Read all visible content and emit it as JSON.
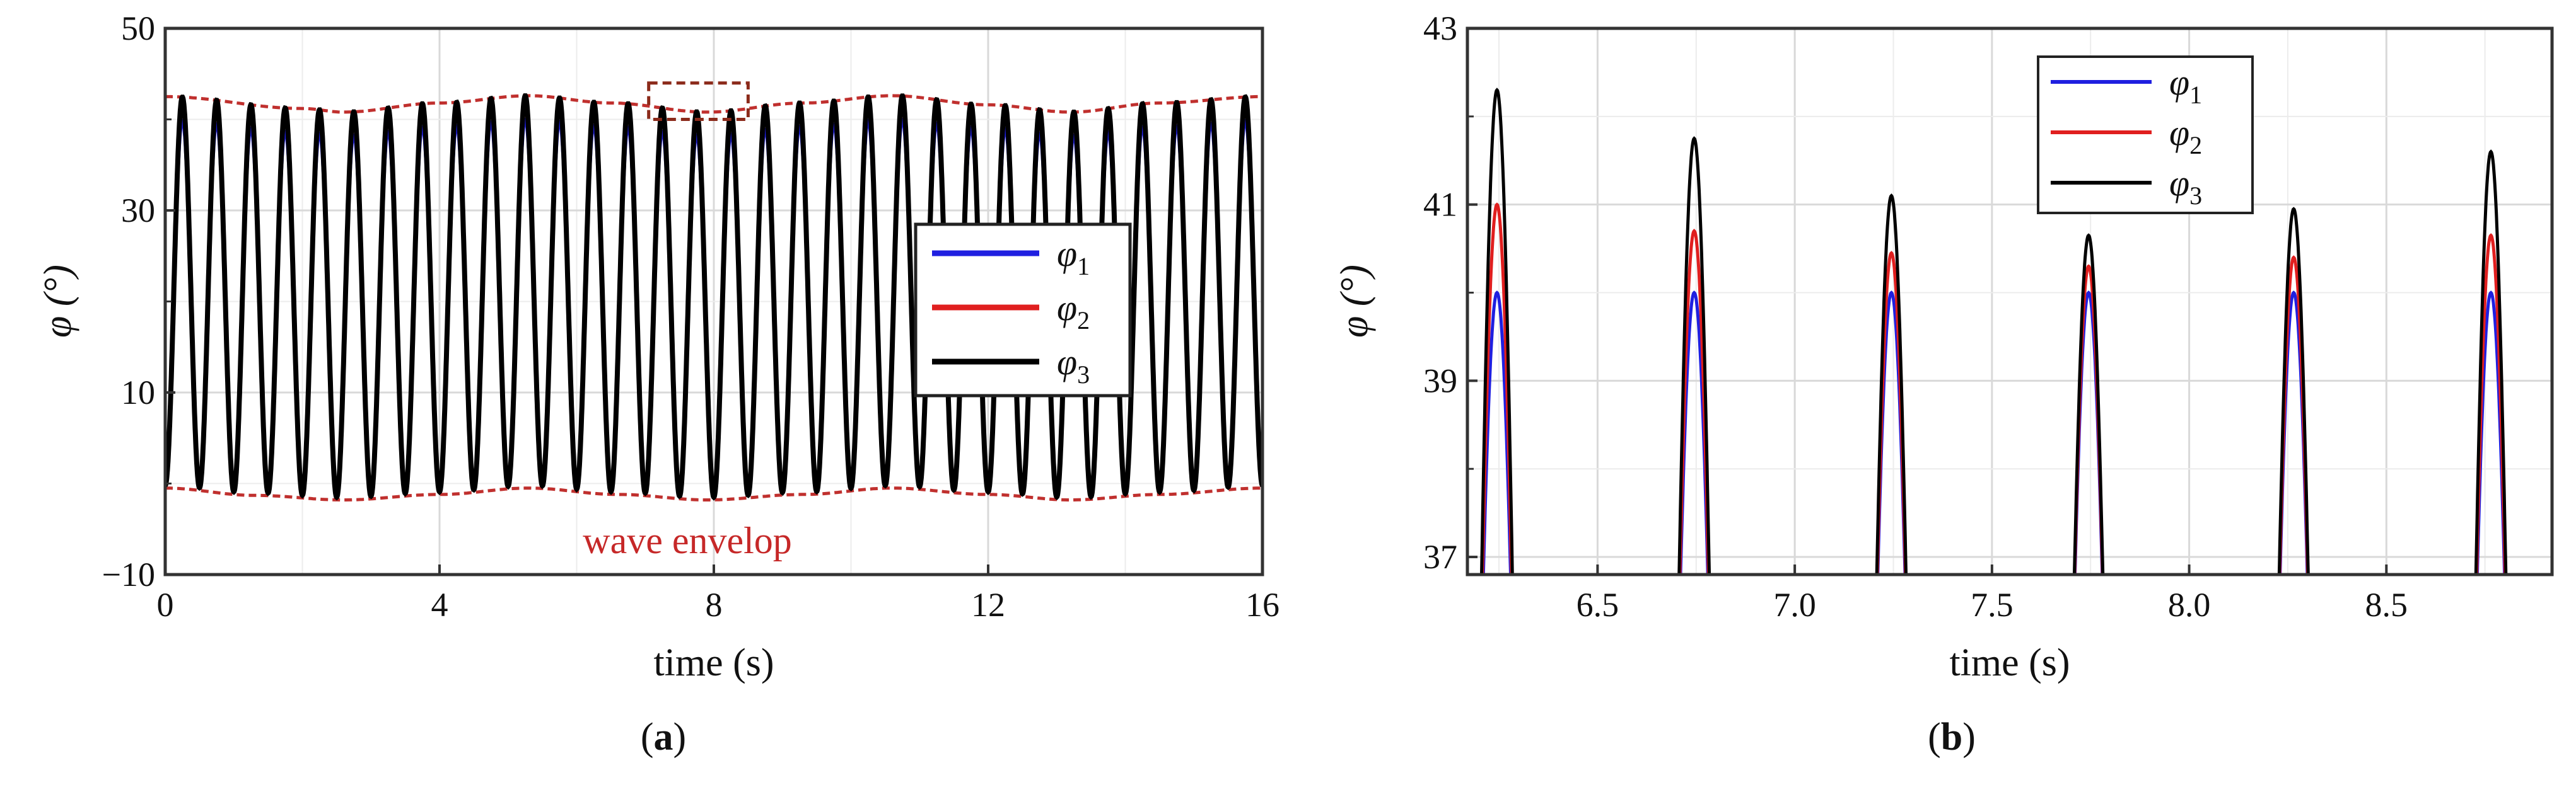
{
  "chart_data": [
    {
      "type": "line",
      "panel": "a",
      "caption_letter": "a",
      "xlabel": "time (s)",
      "ylabel": "φ (°)",
      "xlim": [
        0,
        16
      ],
      "ylim": [
        -10,
        50
      ],
      "xticks": [
        0,
        4,
        8,
        12,
        16
      ],
      "xtick_labels": [
        "0",
        "4",
        "8",
        "12",
        "16"
      ],
      "yticks": [
        -10,
        10,
        30,
        50
      ],
      "ytick_labels": [
        "−10",
        "10",
        "30",
        "50"
      ],
      "grid": true,
      "legend_position": "right",
      "series_oscillation": {
        "period_s": 0.5,
        "min_deg": 0,
        "max_deg_range": [
          40,
          43
        ]
      },
      "series": [
        {
          "name": "φ1",
          "label_base": "φ",
          "label_sub": "1",
          "color": "#1f1fe0"
        },
        {
          "name": "φ2",
          "label_base": "φ",
          "label_sub": "2",
          "color": "#e01f1f"
        },
        {
          "name": "φ3",
          "label_base": "φ",
          "label_sub": "3",
          "color": "#000000"
        }
      ],
      "envelope": {
        "label": "wave envelop",
        "color": "#c0302e",
        "upper": {
          "x": [
            0,
            2,
            2.6,
            4,
            5.3,
            6.5,
            7.9,
            9.3,
            10.6,
            12,
            13.2,
            14.5,
            16
          ],
          "y": [
            42.5,
            41.2,
            40.8,
            41.8,
            42.6,
            41.8,
            40.8,
            41.8,
            42.6,
            41.6,
            40.8,
            41.8,
            42.5
          ]
        },
        "lower": {
          "x": [
            0,
            1.3,
            2.6,
            4,
            5.3,
            6.6,
            7.9,
            9.3,
            10.6,
            12,
            13.2,
            14.5,
            16
          ],
          "y": [
            -0.5,
            -1.3,
            -1.8,
            -1.2,
            -0.5,
            -1.2,
            -1.8,
            -1.2,
            -0.5,
            -1.2,
            -1.8,
            -1.2,
            -0.5
          ]
        }
      },
      "zoom_box": {
        "x0": 7.05,
        "x1": 8.5,
        "y0": 40.0,
        "y1": 44.0
      }
    },
    {
      "type": "line",
      "panel": "b",
      "caption_letter": "b",
      "xlabel": "time (s)",
      "ylabel": "φ (°)",
      "xlim": [
        6.17,
        8.92
      ],
      "ylim": [
        36.8,
        43
      ],
      "xticks": [
        6.5,
        7.0,
        7.5,
        8.0,
        8.5
      ],
      "xtick_labels": [
        "6.5",
        "7.0",
        "7.5",
        "8.0",
        "8.5"
      ],
      "yticks": [
        37,
        39,
        41,
        43
      ],
      "ytick_labels": [
        "37",
        "39",
        "41",
        "43"
      ],
      "grid": true,
      "legend_position": "top-center",
      "peak_half_width_s": 0.05,
      "series": [
        {
          "name": "φ1",
          "label_base": "φ",
          "label_sub": "1",
          "color": "#1f1fe0",
          "peak_t": [
            6.245,
            6.745,
            7.245,
            7.745,
            8.265,
            8.765
          ],
          "peak_y": [
            40.0,
            40.0,
            40.0,
            40.0,
            40.0,
            40.0
          ]
        },
        {
          "name": "φ2",
          "label_base": "φ",
          "label_sub": "2",
          "color": "#e01f1f",
          "peak_t": [
            6.245,
            6.745,
            7.245,
            7.745,
            8.265,
            8.765
          ],
          "peak_y": [
            41.0,
            40.7,
            40.45,
            40.3,
            40.4,
            40.65
          ]
        },
        {
          "name": "φ3",
          "label_base": "φ",
          "label_sub": "3",
          "color": "#000000",
          "peak_t": [
            6.245,
            6.745,
            7.245,
            7.745,
            8.265,
            8.765
          ],
          "peak_y": [
            42.3,
            41.75,
            41.1,
            40.65,
            40.95,
            41.6
          ]
        }
      ]
    }
  ]
}
